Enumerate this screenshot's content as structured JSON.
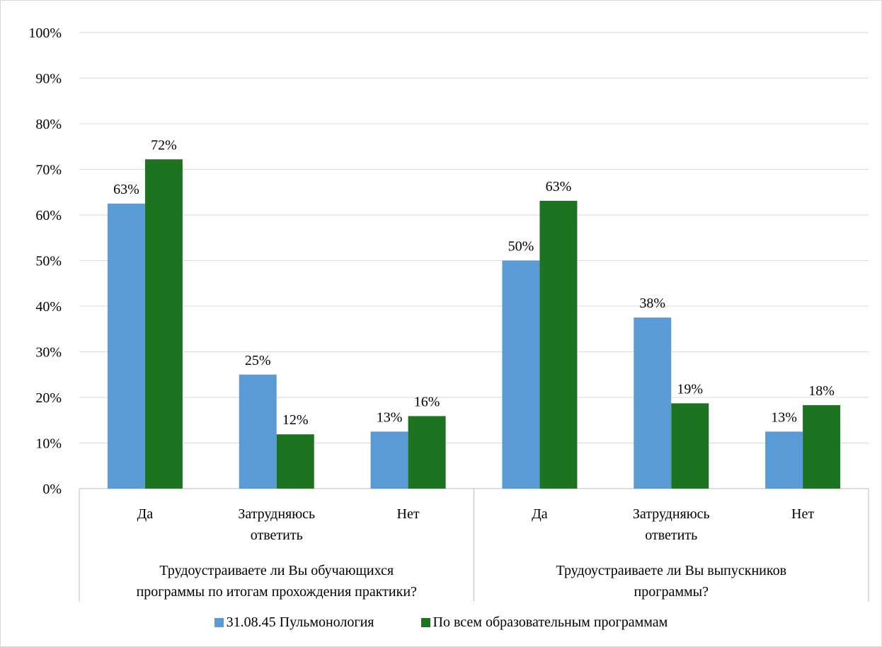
{
  "chart_data": {
    "type": "bar",
    "groups": [
      {
        "label": "Трудоустраиваете ли Вы обучающихся программы по итогам прохождения практики?",
        "lines": [
          "Трудоустраиваете ли Вы обучающихся",
          "программы по итогам прохождения практики?"
        ],
        "categories": [
          {
            "label": "Да",
            "lines": [
              "Да"
            ]
          },
          {
            "label": "Затрудняюсь ответить",
            "lines": [
              "Затрудняюсь",
              "ответить"
            ]
          },
          {
            "label": "Нет",
            "lines": [
              "Нет"
            ]
          }
        ]
      },
      {
        "label": "Трудоустраиваете ли Вы выпускников программы?",
        "lines": [
          "Трудоустраиваете ли Вы выпускников",
          "программы?"
        ],
        "categories": [
          {
            "label": "Да",
            "lines": [
              "Да"
            ]
          },
          {
            "label": "Затрудняюсь ответить",
            "lines": [
              "Затрудняюсь",
              "ответить"
            ]
          },
          {
            "label": "Нет",
            "lines": [
              "Нет"
            ]
          }
        ]
      }
    ],
    "series": [
      {
        "name": "31.08.45 Пульмонология",
        "color": "#5b9bd5",
        "values": [
          62.5,
          25,
          12.5,
          50,
          37.5,
          12.5
        ],
        "labels": [
          "63%",
          "25%",
          "13%",
          "50%",
          "38%",
          "13%"
        ]
      },
      {
        "name": "По всем образовательным программам",
        "color": "#1e7321",
        "values": [
          72.2,
          11.9,
          15.9,
          63.1,
          18.7,
          18.3
        ],
        "labels": [
          "72%",
          "12%",
          "16%",
          "63%",
          "19%",
          "18%"
        ]
      }
    ],
    "ylim": [
      0,
      100
    ],
    "yticks": [
      "0%",
      "10%",
      "20%",
      "30%",
      "40%",
      "50%",
      "60%",
      "70%",
      "80%",
      "90%",
      "100%"
    ],
    "grid": true,
    "legend": "bottom"
  }
}
